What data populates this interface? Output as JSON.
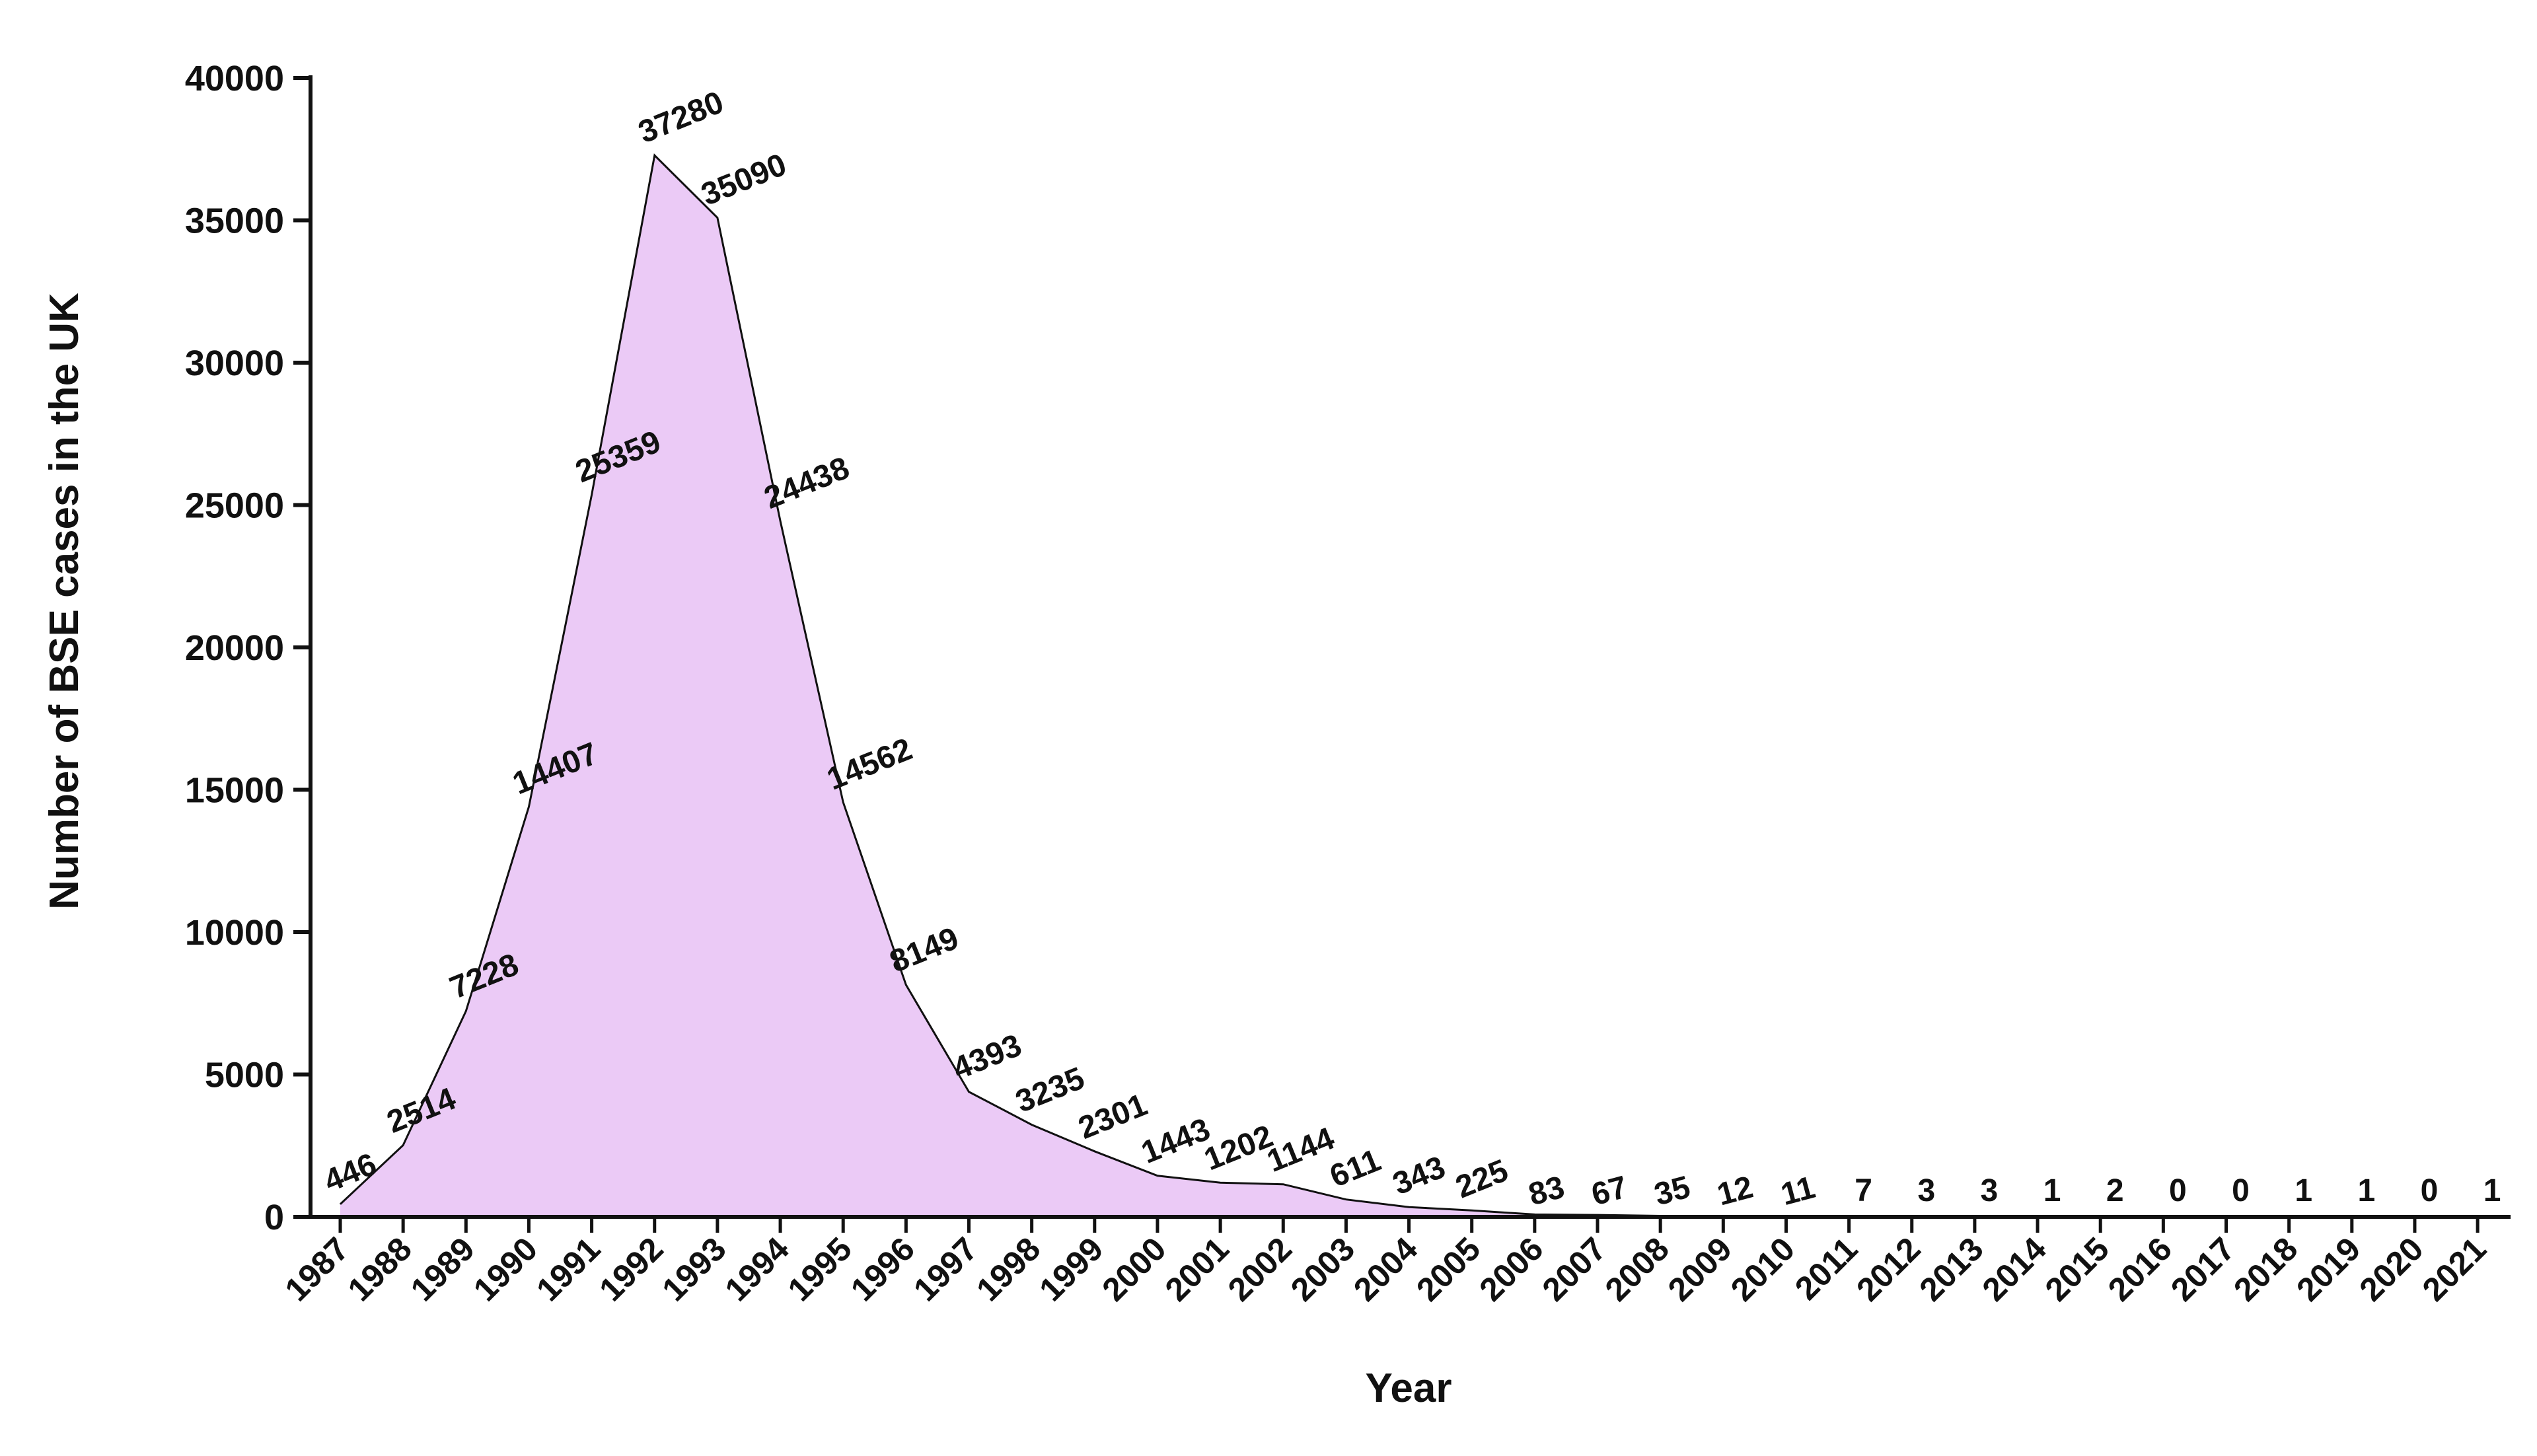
{
  "chart_data": {
    "type": "area",
    "title": "",
    "xlabel": "Year",
    "ylabel": "Number of BSE cases in the UK",
    "x": [
      "1987",
      "1988",
      "1989",
      "1990",
      "1991",
      "1992",
      "1993",
      "1994",
      "1995",
      "1996",
      "1997",
      "1998",
      "1999",
      "2000",
      "2001",
      "2002",
      "2003",
      "2004",
      "2005",
      "2006",
      "2007",
      "2008",
      "2009",
      "2010",
      "2011",
      "2012",
      "2013",
      "2014",
      "2015",
      "2016",
      "2017",
      "2018",
      "2019",
      "2020",
      "2021"
    ],
    "values": [
      446,
      2514,
      7228,
      14407,
      25359,
      37280,
      35090,
      24438,
      14562,
      8149,
      4393,
      3235,
      2301,
      1443,
      1202,
      1144,
      611,
      343,
      225,
      83,
      67,
      35,
      12,
      11,
      7,
      3,
      3,
      1,
      2,
      0,
      0,
      1,
      1,
      0,
      1
    ],
    "data_labels": [
      "446",
      "2514",
      "7228",
      "14407",
      "25359",
      "37280",
      "35090",
      "24438",
      "14562",
      "8149",
      "4393",
      "3235",
      "2301",
      "1443",
      "1202",
      "1144",
      "611",
      "343",
      "225",
      "83",
      "67",
      "35",
      "12",
      "11",
      "7",
      "3",
      "3",
      "1",
      "2",
      "0",
      "0",
      "1",
      "1",
      "0",
      "1"
    ],
    "yticks": [
      "0",
      "5000",
      "10000",
      "15000",
      "20000",
      "25000",
      "30000",
      "35000",
      "40000"
    ],
    "ylim": [
      0,
      40000
    ],
    "grid": false,
    "legend": "none",
    "colors": {
      "fill": "#ebcaf6",
      "line": "#111111",
      "axis": "#111111"
    }
  }
}
